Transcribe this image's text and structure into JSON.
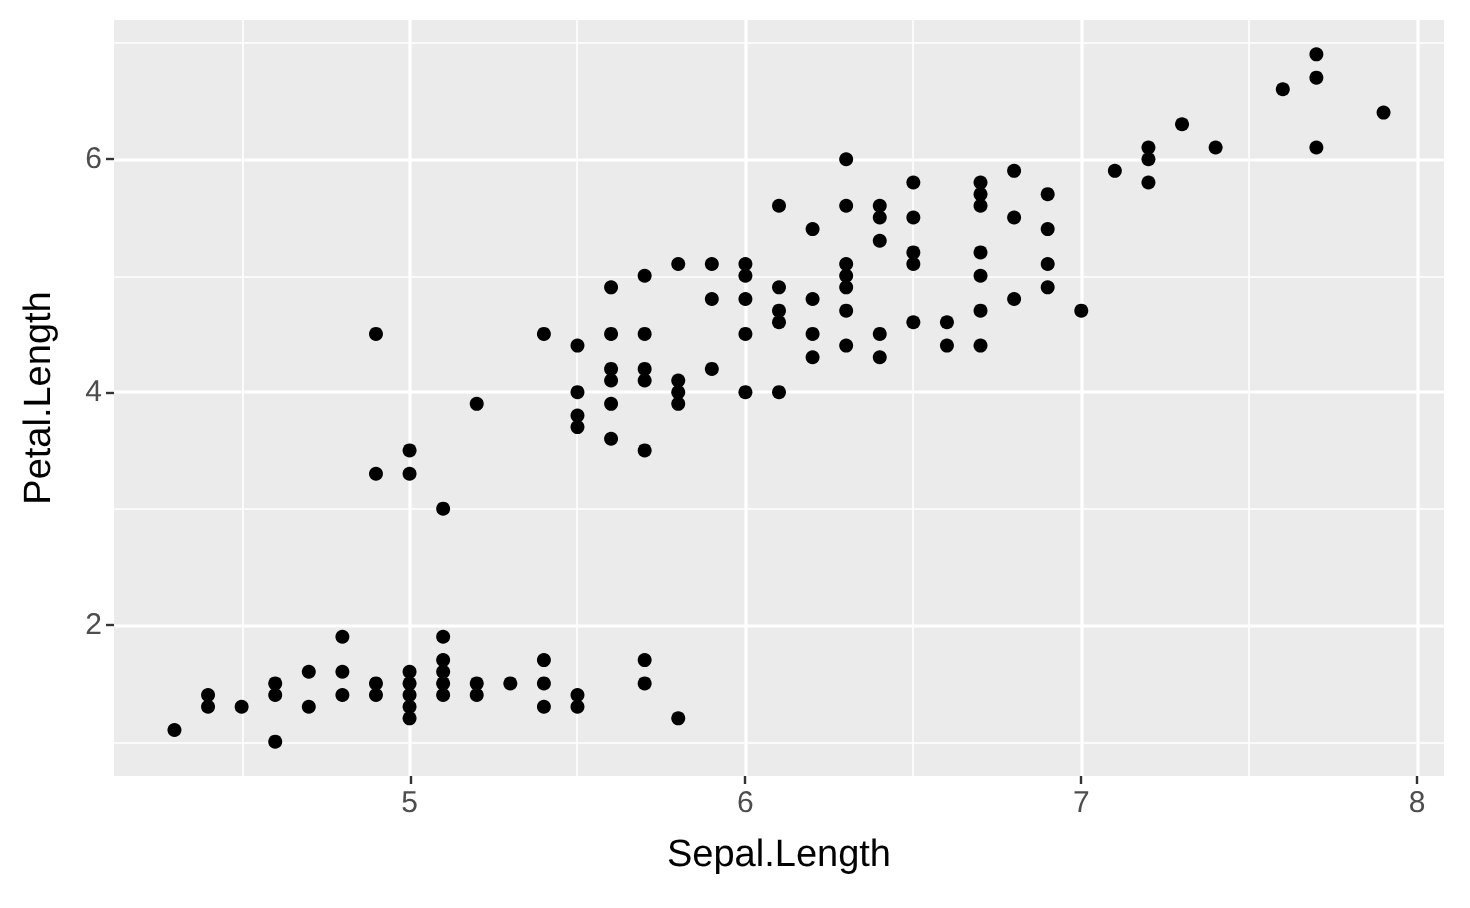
{
  "chart_data": {
    "type": "scatter",
    "xlabel": "Sepal.Length",
    "ylabel": "Petal.Length",
    "color": "#000000",
    "marker": "circle",
    "grid": true,
    "xlim": [
      4.12,
      8.08
    ],
    "ylim": [
      0.705,
      7.195
    ],
    "xticks": [
      {
        "value": 4.5,
        "label": null
      },
      5,
      {
        "value": 5.5,
        "label": null
      },
      6,
      {
        "value": 6.5,
        "label": null
      },
      7,
      {
        "value": 7.5,
        "label": null
      },
      8
    ],
    "yticks": [
      {
        "value": 1,
        "label": null
      },
      2,
      {
        "value": 3,
        "label": null
      },
      4,
      {
        "value": 5,
        "label": null
      },
      6,
      {
        "value": 7,
        "label": null
      }
    ],
    "x": [
      4.3,
      4.4,
      4.4,
      4.5,
      4.6,
      4.6,
      4.6,
      4.7,
      4.7,
      4.8,
      4.8,
      4.8,
      4.9,
      4.9,
      4.9,
      4.9,
      5.0,
      5.0,
      5.0,
      5.0,
      5.0,
      5.0,
      5.0,
      5.1,
      5.1,
      5.1,
      5.1,
      5.1,
      5.1,
      5.2,
      5.2,
      5.2,
      5.3,
      5.4,
      5.4,
      5.4,
      5.4,
      5.5,
      5.5,
      5.5,
      5.5,
      5.5,
      5.5,
      5.6,
      5.6,
      5.6,
      5.6,
      5.6,
      5.6,
      5.7,
      5.7,
      5.7,
      5.7,
      5.7,
      5.7,
      5.7,
      5.8,
      5.8,
      5.8,
      5.8,
      5.8,
      5.9,
      5.9,
      5.9,
      6.0,
      6.0,
      6.0,
      6.0,
      6.0,
      6.1,
      6.1,
      6.1,
      6.1,
      6.1,
      6.2,
      6.2,
      6.2,
      6.2,
      6.3,
      6.3,
      6.3,
      6.3,
      6.3,
      6.3,
      6.3,
      6.4,
      6.4,
      6.4,
      6.4,
      6.4,
      6.5,
      6.5,
      6.5,
      6.5,
      6.5,
      6.6,
      6.6,
      6.7,
      6.7,
      6.7,
      6.7,
      6.7,
      6.7,
      6.7,
      6.8,
      6.8,
      6.8,
      6.9,
      6.9,
      6.9,
      6.9,
      7.0,
      7.1,
      7.2,
      7.2,
      7.2,
      7.3,
      7.4,
      7.6,
      7.7,
      7.7,
      7.7,
      7.9
    ],
    "values": [
      1.1,
      1.4,
      1.3,
      1.3,
      1.5,
      1.4,
      1.0,
      1.3,
      1.6,
      1.6,
      1.4,
      1.9,
      1.4,
      1.5,
      3.3,
      4.5,
      1.4,
      1.5,
      1.6,
      1.2,
      1.3,
      3.5,
      3.3,
      1.4,
      1.5,
      1.7,
      1.9,
      1.6,
      3.0,
      1.5,
      1.4,
      3.9,
      1.5,
      1.7,
      1.5,
      1.3,
      4.5,
      1.4,
      1.3,
      4.0,
      3.8,
      3.7,
      4.4,
      3.6,
      4.5,
      3.9,
      4.1,
      4.2,
      4.9,
      1.5,
      1.7,
      4.5,
      3.5,
      4.2,
      4.1,
      5.0,
      1.2,
      4.1,
      3.9,
      4.0,
      5.1,
      4.2,
      4.8,
      5.1,
      4.0,
      4.5,
      5.1,
      5.0,
      4.8,
      4.7,
      4.0,
      4.6,
      4.9,
      5.6,
      4.5,
      4.3,
      4.8,
      5.4,
      4.7,
      4.9,
      4.4,
      6.0,
      5.6,
      5.1,
      5.0,
      4.5,
      4.3,
      5.3,
      5.6,
      5.5,
      4.6,
      5.8,
      5.1,
      5.5,
      5.2,
      4.6,
      4.4,
      4.4,
      5.0,
      4.7,
      5.8,
      5.7,
      5.6,
      5.2,
      4.8,
      5.5,
      5.9,
      4.9,
      5.7,
      5.4,
      5.1,
      4.7,
      5.9,
      6.1,
      6.0,
      5.8,
      6.3,
      6.1,
      6.6,
      6.7,
      6.9,
      6.1,
      6.4
    ]
  }
}
